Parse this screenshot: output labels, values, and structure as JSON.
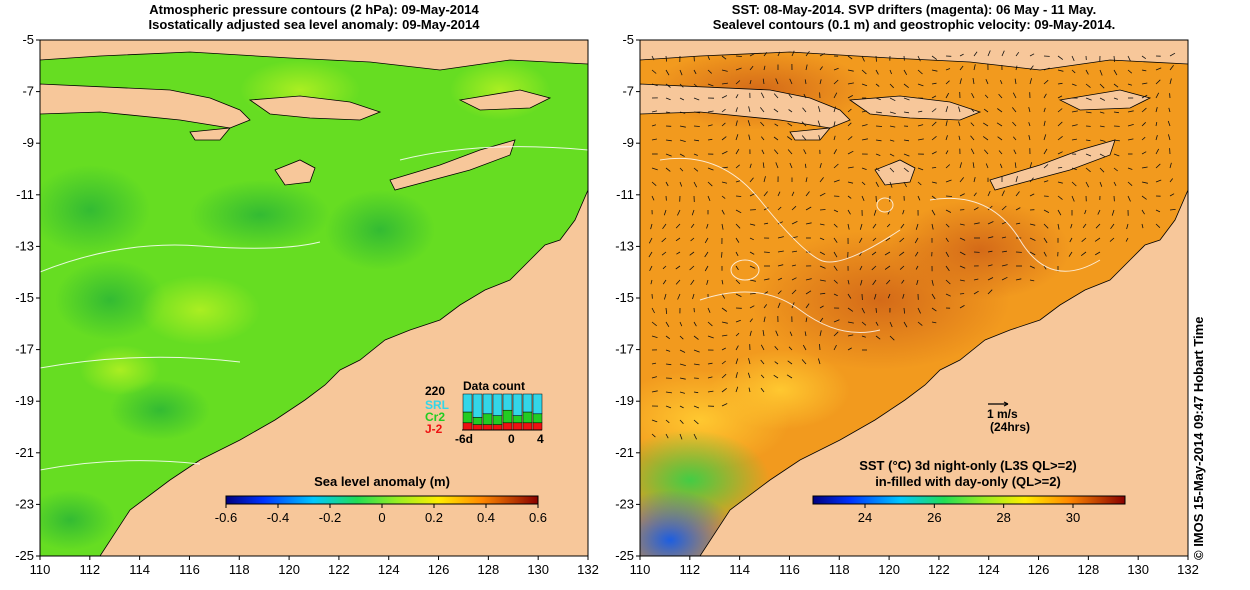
{
  "left_panel": {
    "title_line1": "Atmospheric pressure contours (2 hPa): 09-May-2014",
    "title_line2": "Isostatically adjusted sea level anomaly: 09-May-2014",
    "colorbar": {
      "label": "Sea level anomaly (m)",
      "ticks": [
        "-0.6",
        "-0.4",
        "-0.2",
        "0",
        "0.2",
        "0.4",
        "0.6"
      ],
      "range": [
        -0.6,
        0.6
      ]
    },
    "data_count": {
      "title": "Data count",
      "total": "220",
      "satellites": [
        {
          "name": "SRL",
          "color": "#33d6e8"
        },
        {
          "name": "Cr2",
          "color": "#22cc22"
        },
        {
          "name": "J-2",
          "color": "#ee1111"
        }
      ],
      "axis_ticks": [
        "-6d",
        "0",
        "4"
      ],
      "bars": [
        {
          "srl": 0.5,
          "cr2": 0.3,
          "j2": 0.2
        },
        {
          "srl": 0.65,
          "cr2": 0.2,
          "j2": 0.15
        },
        {
          "srl": 0.55,
          "cr2": 0.3,
          "j2": 0.15
        },
        {
          "srl": 0.6,
          "cr2": 0.25,
          "j2": 0.15
        },
        {
          "srl": 0.45,
          "cr2": 0.35,
          "j2": 0.2
        },
        {
          "srl": 0.6,
          "cr2": 0.2,
          "j2": 0.2
        },
        {
          "srl": 0.5,
          "cr2": 0.3,
          "j2": 0.2
        },
        {
          "srl": 0.55,
          "cr2": 0.25,
          "j2": 0.2
        }
      ]
    }
  },
  "right_panel": {
    "title_line1": "SST: 08-May-2014. SVP drifters (magenta): 06 May - 11 May.",
    "title_line2": "Sealevel contours (0.1 m) and geostrophic velocity: 09-May-2014.",
    "colorbar": {
      "label_line1": "SST (°C)  3d night-only (L3S QL>=2)",
      "label_line2": "in-filled with day-only (QL>=2)",
      "ticks": [
        "24",
        "26",
        "28",
        "30"
      ],
      "range": [
        22.5,
        31.5
      ]
    },
    "velocity_legend": {
      "value": "1 m/s",
      "note": "(24hrs)"
    }
  },
  "axes": {
    "lon_ticks": [
      "110",
      "112",
      "114",
      "116",
      "118",
      "120",
      "122",
      "124",
      "126",
      "128",
      "130",
      "132"
    ],
    "lat_ticks": [
      "-5",
      "-7",
      "-9",
      "-11",
      "-13",
      "-15",
      "-17",
      "-19",
      "-21",
      "-23",
      "-25"
    ],
    "lon_range": [
      110,
      132
    ],
    "lat_range": [
      -25,
      -5
    ]
  },
  "colors": {
    "land": "#f7c79a",
    "sla_base": "#66dd22",
    "sst_base": "#f29a1e"
  },
  "credit": "© IMOS 15-May-2014 09:47 Hobart Time"
}
